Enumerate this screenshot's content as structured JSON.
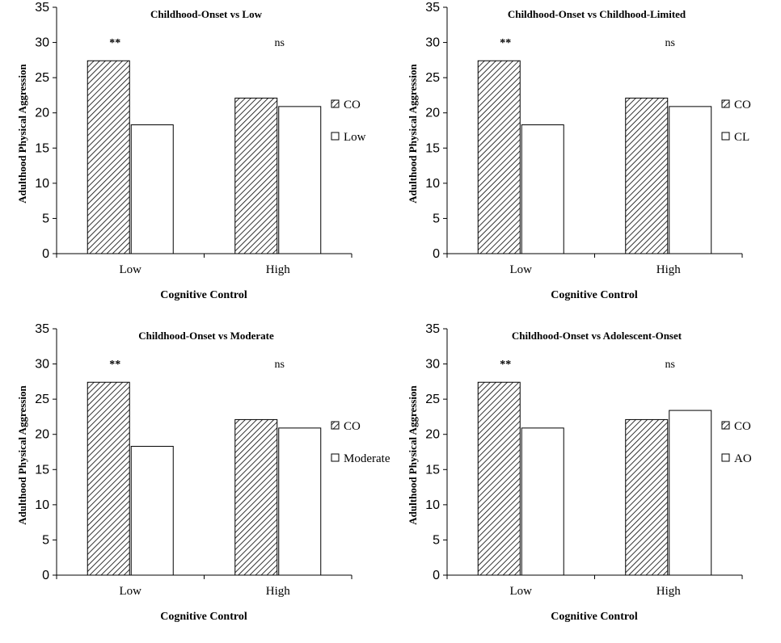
{
  "chart_data": [
    {
      "type": "bar",
      "title": "Childhood-Onset vs Low",
      "xlabel": "Cognitive Control",
      "ylabel": "Adulthood Physical Aggression",
      "categories": [
        "Low",
        "High"
      ],
      "ylim": [
        0,
        35
      ],
      "yticks": [
        0,
        5,
        10,
        15,
        20,
        25,
        30,
        35
      ],
      "series": [
        {
          "name": "CO",
          "values": [
            27.4,
            22.1
          ],
          "pattern": "hatch"
        },
        {
          "name": "Low",
          "values": [
            18.3,
            20.9
          ],
          "pattern": "white"
        }
      ],
      "annotations": [
        "**",
        "ns"
      ],
      "legend_position": "right",
      "grid": false
    },
    {
      "type": "bar",
      "title": "Childhood-Onset vs Childhood-Limited",
      "xlabel": "Cognitive Control",
      "ylabel": "Adulthood Physical Aggression",
      "categories": [
        "Low",
        "High"
      ],
      "ylim": [
        0,
        35
      ],
      "yticks": [
        0,
        5,
        10,
        15,
        20,
        25,
        30,
        35
      ],
      "series": [
        {
          "name": "CO",
          "values": [
            27.4,
            22.1
          ],
          "pattern": "hatch"
        },
        {
          "name": "CL",
          "values": [
            18.3,
            20.9
          ],
          "pattern": "white"
        }
      ],
      "annotations": [
        "**",
        "ns"
      ],
      "legend_position": "right",
      "grid": false
    },
    {
      "type": "bar",
      "title": "Childhood-Onset vs Moderate",
      "xlabel": "Cognitive Control",
      "ylabel": "Adulthood Physical Aggression",
      "categories": [
        "Low",
        "High"
      ],
      "ylim": [
        0,
        35
      ],
      "yticks": [
        0,
        5,
        10,
        15,
        20,
        25,
        30,
        35
      ],
      "series": [
        {
          "name": "CO",
          "values": [
            27.4,
            22.1
          ],
          "pattern": "hatch"
        },
        {
          "name": "Moderate",
          "values": [
            18.3,
            20.9
          ],
          "pattern": "white"
        }
      ],
      "annotations": [
        "**",
        "ns"
      ],
      "legend_position": "right",
      "grid": false
    },
    {
      "type": "bar",
      "title": "Childhood-Onset vs Adolescent-Onset",
      "xlabel": "Cognitive Control",
      "ylabel": "Adulthood Physical Aggression",
      "categories": [
        "Low",
        "High"
      ],
      "ylim": [
        0,
        35
      ],
      "yticks": [
        0,
        5,
        10,
        15,
        20,
        25,
        30,
        35
      ],
      "series": [
        {
          "name": "CO",
          "values": [
            27.4,
            22.1
          ],
          "pattern": "hatch"
        },
        {
          "name": "AO",
          "values": [
            20.9,
            23.4
          ],
          "pattern": "white"
        }
      ],
      "annotations": [
        "**",
        "ns"
      ],
      "legend_position": "right",
      "grid": false
    }
  ]
}
